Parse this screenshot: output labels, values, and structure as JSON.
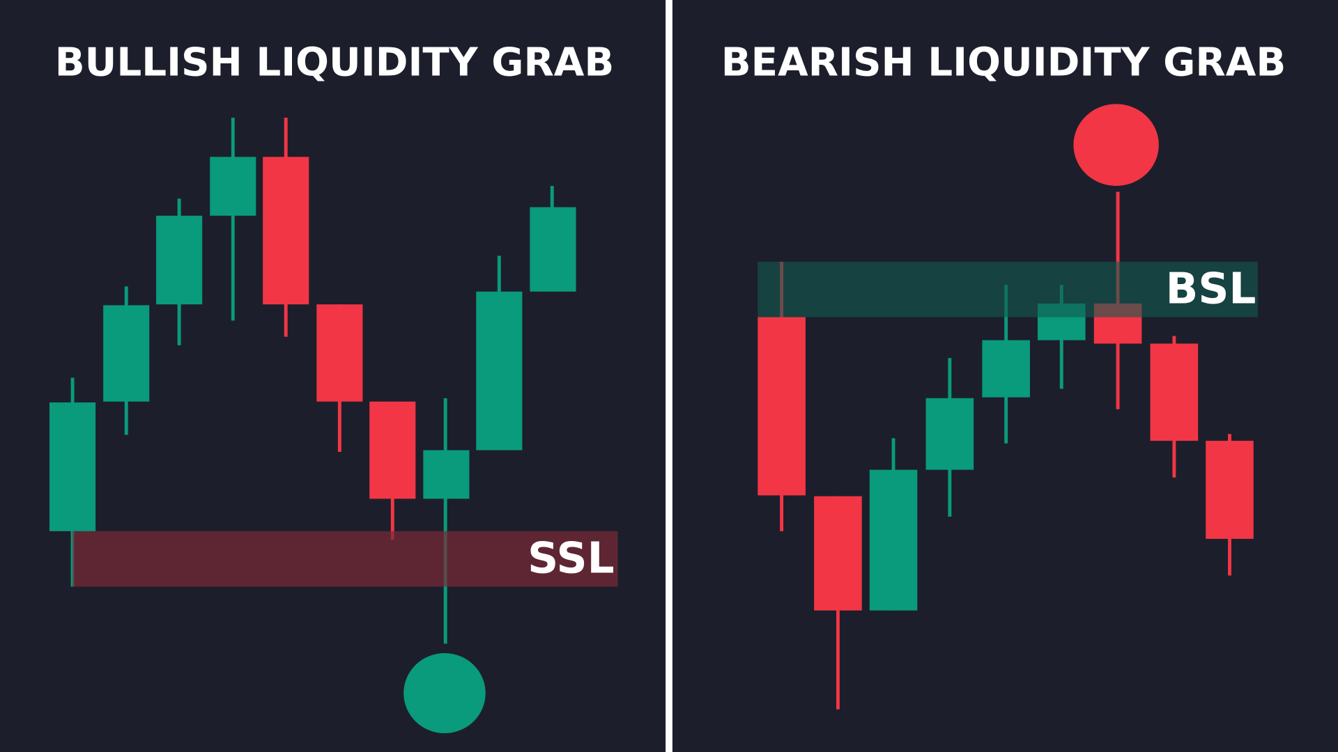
{
  "panels": [
    {
      "title": "BULLISH LIQUIDITY GRAB",
      "label": "SSL"
    },
    {
      "title": "BEARISH LIQUIDITY GRAB",
      "label": "BSL"
    }
  ]
}
